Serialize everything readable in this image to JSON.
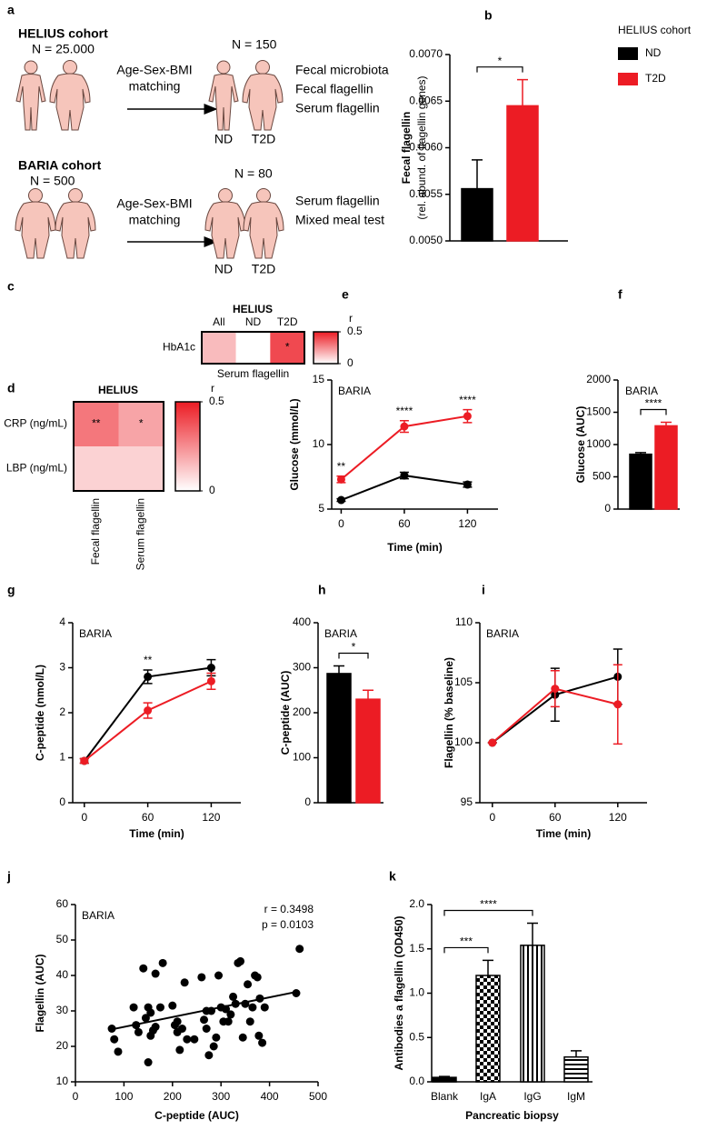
{
  "diagram": {
    "label": "a",
    "cohorts": [
      {
        "name": "HELIUS cohort",
        "n": "N = 25.000",
        "method": [
          "Age-Sex-BMI",
          "matching"
        ],
        "matched_n": "N = 150",
        "groups": [
          "ND",
          "T2D"
        ],
        "measures": [
          "Fecal microbiota",
          "Fecal flagellin",
          "Serum flagellin"
        ]
      },
      {
        "name": "BARIA cohort",
        "n": "N = 500",
        "method": [
          "Age-Sex-BMI",
          "matching"
        ],
        "matched_n": "N = 80",
        "groups": [
          "ND",
          "T2D"
        ],
        "measures": [
          "Serum flagellin",
          "Mixed meal test"
        ]
      }
    ]
  },
  "chart_data": [
    {
      "type": "bar",
      "panel": "b",
      "ylabel": [
        "Fecal flagellin",
        "(rel. abund. of flagellin genes)"
      ],
      "legend_title": "HELIUS cohort",
      "series": [
        {
          "name": "ND",
          "color": "#000000",
          "values": [
            0.00556
          ],
          "errors": [
            0.00031
          ]
        },
        {
          "name": "T2D",
          "color": "#ec1c24",
          "values": [
            0.00645
          ],
          "errors": [
            0.00028
          ]
        }
      ],
      "ylim": [
        0.005,
        0.007
      ],
      "yticks": [
        {
          "value": 0.005,
          "label": "0.0050"
        },
        {
          "value": 0.0055,
          "label": "0.0055"
        },
        {
          "value": 0.006,
          "label": "0.0060"
        },
        {
          "value": 0.0065,
          "label": "0.0065"
        },
        {
          "value": 0.007,
          "label": "0.0070"
        }
      ],
      "significance": "*"
    },
    {
      "type": "heatmap",
      "panel": "c",
      "title": "HELIUS",
      "columns": [
        "All",
        "ND",
        "T2D"
      ],
      "rows": [
        "HbA1c"
      ],
      "values": [
        [
          0.15,
          0.0,
          0.4
        ]
      ],
      "annotations": [
        [
          null,
          null,
          "*"
        ]
      ],
      "xlabel": "Serum flagellin",
      "colorbar_label": "r",
      "zlim": [
        0,
        0.5
      ],
      "colorbar_ticks": [
        0.5,
        0
      ],
      "color": "#ec1c24"
    },
    {
      "type": "heatmap",
      "panel": "d",
      "title": "HELIUS",
      "columns": [
        "Fecal flagellin",
        "Serum flagellin"
      ],
      "rows": [
        "CRP (ng/mL)",
        "LBP (ng/mL)"
      ],
      "values": [
        [
          0.3,
          0.2
        ],
        [
          0.1,
          0.1
        ]
      ],
      "annotations": [
        [
          "**",
          "*"
        ],
        [
          null,
          null
        ]
      ],
      "colorbar_label": "r",
      "zlim": [
        0,
        0.5
      ],
      "colorbar_ticks": [
        0.5,
        0
      ],
      "color": "#ec1c24"
    },
    {
      "type": "line",
      "panel": "e",
      "title": "BARIA",
      "xlabel": "Time (min)",
      "ylabel": "Glucose (mmol/L)",
      "x": [
        0,
        60,
        120
      ],
      "series": [
        {
          "color": "#000000",
          "values": [
            5.7,
            7.6,
            6.9
          ],
          "errors": [
            0.1,
            0.25,
            0.2
          ]
        },
        {
          "color": "#ec1c24",
          "values": [
            7.3,
            11.4,
            12.2
          ],
          "errors": [
            0.25,
            0.45,
            0.5
          ]
        }
      ],
      "annotations": [
        "**",
        "****",
        "****"
      ],
      "xlim": [
        -9,
        149
      ],
      "xticks": [
        0,
        60,
        120
      ],
      "ylim": [
        5,
        15
      ],
      "yticks": [
        5,
        10,
        15
      ]
    },
    {
      "type": "bar",
      "panel": "f",
      "title": "BARIA",
      "ylabel": "Glucose (AUC)",
      "categories": [
        null,
        null
      ],
      "values": [
        850,
        1290
      ],
      "errors": [
        25,
        55
      ],
      "colors": [
        "#000000",
        "#ec1c24"
      ],
      "ylim": [
        0,
        2000
      ],
      "yticks": [
        0,
        500,
        1000,
        1500,
        2000
      ],
      "significance": "****"
    },
    {
      "type": "line",
      "panel": "g",
      "title": "BARIA",
      "xlabel": "Time (min)",
      "ylabel": "C-peptide (nmol/L)",
      "x": [
        0,
        60,
        120
      ],
      "series": [
        {
          "color": "#000000",
          "values": [
            0.93,
            2.8,
            3.0
          ],
          "errors": [
            0.05,
            0.15,
            0.18
          ]
        },
        {
          "color": "#ec1c24",
          "values": [
            0.93,
            2.05,
            2.7
          ],
          "errors": [
            0.05,
            0.17,
            0.18
          ]
        }
      ],
      "annotations": [
        null,
        "**",
        null
      ],
      "xlim": [
        -11,
        148
      ],
      "xticks": [
        0,
        60,
        120
      ],
      "ylim": [
        0,
        4
      ],
      "yticks": [
        0,
        1,
        2,
        3,
        4
      ]
    },
    {
      "type": "bar",
      "panel": "h",
      "title": "BARIA",
      "ylabel": "C-peptide (AUC)",
      "categories": [
        null,
        null
      ],
      "values": [
        287,
        230
      ],
      "errors": [
        17,
        20
      ],
      "colors": [
        "#000000",
        "#ec1c24"
      ],
      "ylim": [
        0,
        400
      ],
      "yticks": [
        0,
        100,
        200,
        300,
        400
      ],
      "significance": "*"
    },
    {
      "type": "line",
      "panel": "i",
      "title": "BARIA",
      "xlabel": "Time (min)",
      "ylabel": "Flagellin (% baseline)",
      "x": [
        0,
        60,
        120
      ],
      "series": [
        {
          "color": "#000000",
          "values": [
            100,
            104,
            105.5
          ],
          "errors": [
            0,
            2.2,
            2.3
          ]
        },
        {
          "color": "#ec1c24",
          "values": [
            100,
            104.5,
            103.2
          ],
          "errors": [
            0,
            1.5,
            3.3
          ]
        }
      ],
      "xlim": [
        -12,
        148
      ],
      "xticks": [
        0,
        60,
        120
      ],
      "ylim": [
        95,
        110
      ],
      "yticks": [
        95,
        100,
        105,
        110
      ]
    },
    {
      "type": "scatter",
      "panel": "j",
      "title": "BARIA",
      "xlabel": "C-peptide (AUC)",
      "ylabel": "Flagellin (AUC)",
      "annotations": [
        "r = 0.3498",
        "p = 0.0103"
      ],
      "x": [
        75,
        80,
        88,
        125,
        130,
        140,
        145,
        150,
        155,
        155,
        160,
        165,
        165,
        175,
        180,
        200,
        205,
        210,
        210,
        215,
        220,
        225,
        230,
        245,
        260,
        265,
        270,
        270,
        275,
        280,
        285,
        290,
        295,
        300,
        305,
        310,
        315,
        320,
        325,
        330,
        335,
        340,
        345,
        350,
        355,
        360,
        365,
        370,
        375,
        378,
        380,
        385,
        390,
        455,
        462,
        150,
        120
      ],
      "y": [
        25,
        22,
        18.5,
        26,
        24,
        42,
        28,
        15.5,
        29.5,
        23,
        24.5,
        40.5,
        25.5,
        31,
        43.5,
        31.5,
        26,
        27,
        24,
        19,
        25,
        38,
        22,
        22,
        39.5,
        27.5,
        30,
        25,
        17.5,
        30,
        20,
        22.5,
        40,
        31,
        27,
        30.5,
        27,
        29,
        34,
        32,
        43.5,
        44,
        22.5,
        32,
        37.5,
        27,
        31,
        40,
        39.5,
        23,
        33.5,
        21,
        31,
        35,
        47.5,
        31,
        31
      ],
      "fit": {
        "x": [
          75,
          460
        ],
        "y": [
          24.8,
          35.5
        ]
      },
      "color": "#000000",
      "xlim": [
        0,
        500
      ],
      "xticks": [
        0,
        100,
        200,
        300,
        400,
        500
      ],
      "ylim": [
        10,
        60
      ],
      "yticks": [
        10,
        20,
        30,
        40,
        50,
        60
      ]
    },
    {
      "type": "bar",
      "panel": "k",
      "xlabel": "Pancreatic biopsy",
      "ylabel": "Antibodies a flagellin  (OD450)",
      "categories": [
        "Blank",
        "IgA",
        "IgG",
        "IgM"
      ],
      "values": [
        0.05,
        1.2,
        1.54,
        0.28
      ],
      "errors": [
        0.01,
        0.17,
        0.25,
        0.07
      ],
      "color": "#000000",
      "patterns": [
        "solid",
        "checker",
        "vertical",
        "horizontal"
      ],
      "ylim": [
        0,
        2
      ],
      "yticks": [
        {
          "value": 0,
          "label": "0.0"
        },
        {
          "value": 0.5,
          "label": "0.5"
        },
        {
          "value": 1,
          "label": "1.0"
        },
        {
          "value": 1.5,
          "label": "1.5"
        },
        {
          "value": 2,
          "label": "2.0"
        }
      ],
      "significance": [
        "***",
        "****"
      ]
    }
  ]
}
